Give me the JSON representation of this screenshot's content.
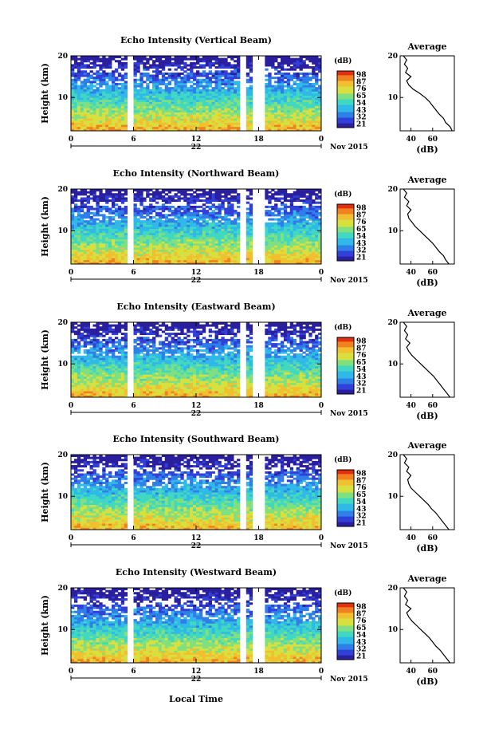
{
  "x_axis_label": "Local Time",
  "date_label": "Nov 2015",
  "day_label": "22",
  "cbar_unit": "(dB)",
  "avg_title": "Average",
  "avg_unit": "(dB)",
  "y_axis_label": "Height (km)",
  "colormap": [
    "#2a1f9e",
    "#3040d8",
    "#2f7fe8",
    "#30b8e8",
    "#40d8c0",
    "#80e080",
    "#d8e040",
    "#f0c030",
    "#f08020",
    "#e03010"
  ],
  "chart_data": [
    {
      "type": "heatmap",
      "title": "Echo Intensity (Vertical Beam)",
      "xlabel": "",
      "ylabel": "Height (km)",
      "xlim": [
        0,
        24
      ],
      "ylim": [
        2,
        20
      ],
      "xticks": [
        "0",
        "6",
        "12",
        "18",
        "0"
      ],
      "yticks": [
        "20",
        "10"
      ],
      "colorbar": {
        "label": "(dB)",
        "ticks": [
          "98",
          "87",
          "76",
          "65",
          "54",
          "43",
          "32",
          "21"
        ]
      },
      "gaps_hours": [
        [
          5.5,
          6.0
        ],
        [
          16.3,
          16.8
        ],
        [
          17.5,
          18.5
        ]
      ],
      "average_profile": {
        "xticks": [
          "40",
          "60"
        ],
        "xlim": [
          30,
          80
        ],
        "height_km": [
          2,
          3,
          4,
          5,
          6,
          7,
          8,
          9,
          10,
          11,
          12,
          13,
          14,
          15,
          16,
          17,
          18,
          19,
          20
        ],
        "db": [
          78,
          76,
          72,
          70,
          66,
          63,
          60,
          57,
          53,
          48,
          42,
          38,
          36,
          40,
          35,
          37,
          34,
          36,
          33
        ]
      }
    },
    {
      "type": "heatmap",
      "title": "Echo Intensity (Northward Beam)",
      "xlabel": "",
      "ylabel": "Height (km)",
      "xlim": [
        0,
        24
      ],
      "ylim": [
        2,
        20
      ],
      "xticks": [
        "0",
        "6",
        "12",
        "18",
        "0"
      ],
      "yticks": [
        "20",
        "10"
      ],
      "colorbar": {
        "label": "(dB)",
        "ticks": [
          "98",
          "87",
          "76",
          "65",
          "54",
          "43",
          "32",
          "21"
        ]
      },
      "gaps_hours": [
        [
          5.5,
          6.0
        ],
        [
          16.3,
          16.8
        ],
        [
          17.5,
          18.5
        ]
      ],
      "average_profile": {
        "xticks": [
          "40",
          "60"
        ],
        "xlim": [
          30,
          80
        ],
        "height_km": [
          2,
          3,
          4,
          5,
          6,
          7,
          8,
          9,
          10,
          11,
          12,
          13,
          14,
          15,
          16,
          17,
          18,
          19,
          20
        ],
        "db": [
          75,
          72,
          70,
          66,
          63,
          60,
          56,
          52,
          48,
          44,
          41,
          38,
          37,
          40,
          36,
          38,
          34,
          36,
          33
        ]
      }
    },
    {
      "type": "heatmap",
      "title": "Echo Intensity (Eastward Beam)",
      "xlabel": "",
      "ylabel": "Height (km)",
      "xlim": [
        0,
        24
      ],
      "ylim": [
        2,
        20
      ],
      "xticks": [
        "0",
        "6",
        "12",
        "18",
        "0"
      ],
      "yticks": [
        "20",
        "10"
      ],
      "colorbar": {
        "label": "(dB)",
        "ticks": [
          "98",
          "87",
          "76",
          "65",
          "54",
          "43",
          "32",
          "21"
        ]
      },
      "gaps_hours": [
        [
          5.5,
          6.0
        ],
        [
          16.3,
          16.8
        ],
        [
          17.5,
          18.5
        ]
      ],
      "average_profile": {
        "xticks": [
          "40",
          "60"
        ],
        "xlim": [
          30,
          80
        ],
        "height_km": [
          2,
          3,
          4,
          5,
          6,
          7,
          8,
          9,
          10,
          11,
          12,
          13,
          14,
          15,
          16,
          17,
          18,
          19,
          20
        ],
        "db": [
          76,
          73,
          70,
          67,
          64,
          61,
          57,
          53,
          49,
          45,
          41,
          38,
          36,
          39,
          35,
          37,
          34,
          36,
          33
        ]
      }
    },
    {
      "type": "heatmap",
      "title": "Echo Intensity (Southward Beam)",
      "xlabel": "",
      "ylabel": "Height (km)",
      "xlim": [
        0,
        24
      ],
      "ylim": [
        2,
        20
      ],
      "xticks": [
        "0",
        "6",
        "12",
        "18",
        "0"
      ],
      "yticks": [
        "20",
        "10"
      ],
      "colorbar": {
        "label": "(dB)",
        "ticks": [
          "98",
          "87",
          "76",
          "65",
          "54",
          "43",
          "32",
          "21"
        ]
      },
      "gaps_hours": [
        [
          5.5,
          6.0
        ],
        [
          16.3,
          16.8
        ],
        [
          17.5,
          18.5
        ]
      ],
      "average_profile": {
        "xticks": [
          "40",
          "60"
        ],
        "xlim": [
          30,
          80
        ],
        "height_km": [
          2,
          3,
          4,
          5,
          6,
          7,
          8,
          9,
          10,
          11,
          12,
          13,
          14,
          15,
          16,
          17,
          18,
          19,
          20
        ],
        "db": [
          75,
          72,
          69,
          66,
          63,
          59,
          56,
          52,
          48,
          44,
          40,
          38,
          37,
          40,
          36,
          38,
          34,
          36,
          33
        ]
      }
    },
    {
      "type": "heatmap",
      "title": "Echo Intensity (Westward Beam)",
      "xlabel": "Local Time",
      "ylabel": "Height (km)",
      "xlim": [
        0,
        24
      ],
      "ylim": [
        2,
        20
      ],
      "xticks": [
        "0",
        "6",
        "12",
        "18",
        "0"
      ],
      "yticks": [
        "20",
        "10"
      ],
      "colorbar": {
        "label": "(dB)",
        "ticks": [
          "98",
          "87",
          "76",
          "65",
          "54",
          "43",
          "32",
          "21"
        ]
      },
      "gaps_hours": [
        [
          5.5,
          6.0
        ],
        [
          16.3,
          16.8
        ],
        [
          17.5,
          18.5
        ]
      ],
      "average_profile": {
        "xticks": [
          "40",
          "60"
        ],
        "xlim": [
          30,
          80
        ],
        "height_km": [
          2,
          3,
          4,
          5,
          6,
          7,
          8,
          9,
          10,
          11,
          12,
          13,
          14,
          15,
          16,
          17,
          18,
          19,
          20
        ],
        "db": [
          76,
          73,
          70,
          67,
          63,
          60,
          57,
          53,
          49,
          45,
          41,
          38,
          36,
          40,
          35,
          37,
          34,
          36,
          33
        ]
      }
    }
  ]
}
